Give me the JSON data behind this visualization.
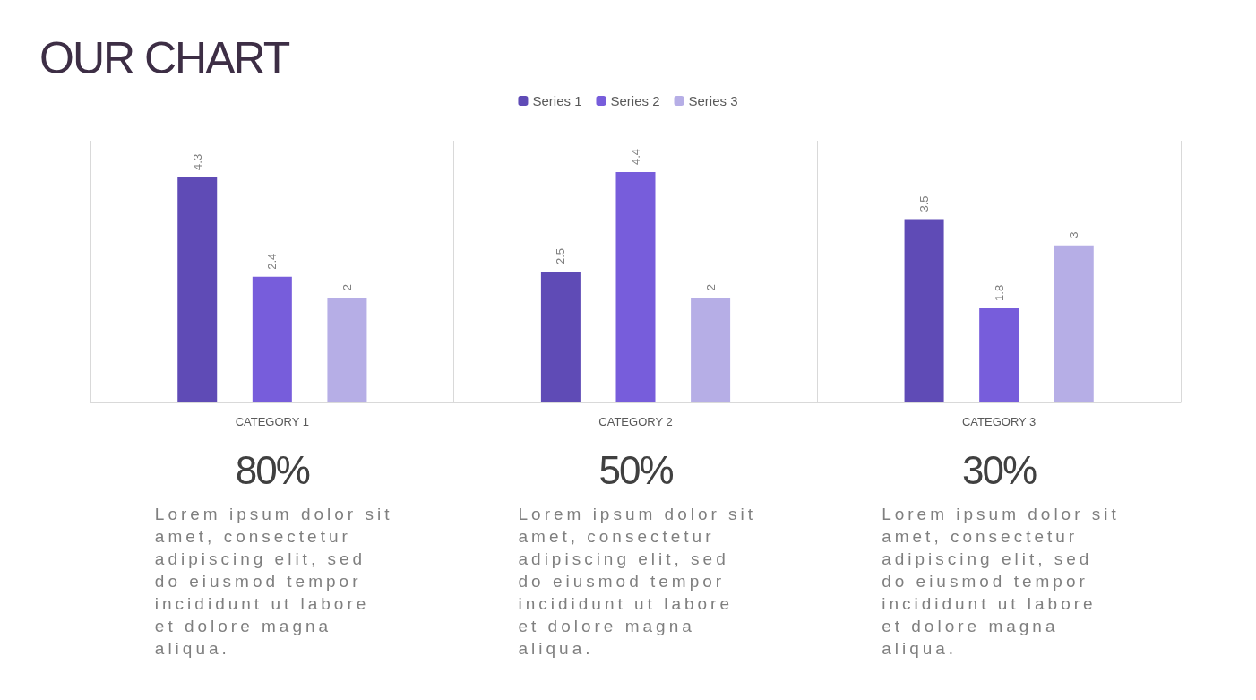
{
  "chart_data": {
    "type": "bar",
    "title": "OUR CHART",
    "categories": [
      "CATEGORY 1",
      "CATEGORY 2",
      "CATEGORY 3"
    ],
    "series": [
      {
        "name": "Series 1",
        "color": "#5f4bb6",
        "values": [
          4.3,
          2.5,
          3.5
        ]
      },
      {
        "name": "Series 2",
        "color": "#775ddb",
        "values": [
          2.4,
          4.4,
          1.8
        ]
      },
      {
        "name": "Series 3",
        "color": "#b6aee6",
        "values": [
          2,
          2,
          3
        ]
      }
    ],
    "data_labels": true,
    "grid": "x",
    "legend": "top",
    "tick_labels": "x",
    "annotations": [
      "80%",
      "Lorem ipsum dolor sit amet, consectetur adipiscing elit, sed do eiusmod tempor incididunt ut labore et dolore magna aliqua.",
      "50%",
      "Lorem ipsum dolor sit amet, consectetur adipiscing elit, sed do eiusmod tempor incididunt ut labore et dolore magna aliqua.",
      "30%",
      "Lorem ipsum dolor sit amet, consectetur adipiscing elit, sed do eiusmod tempor incididunt ut labore et dolore magna aliqua."
    ]
  }
}
